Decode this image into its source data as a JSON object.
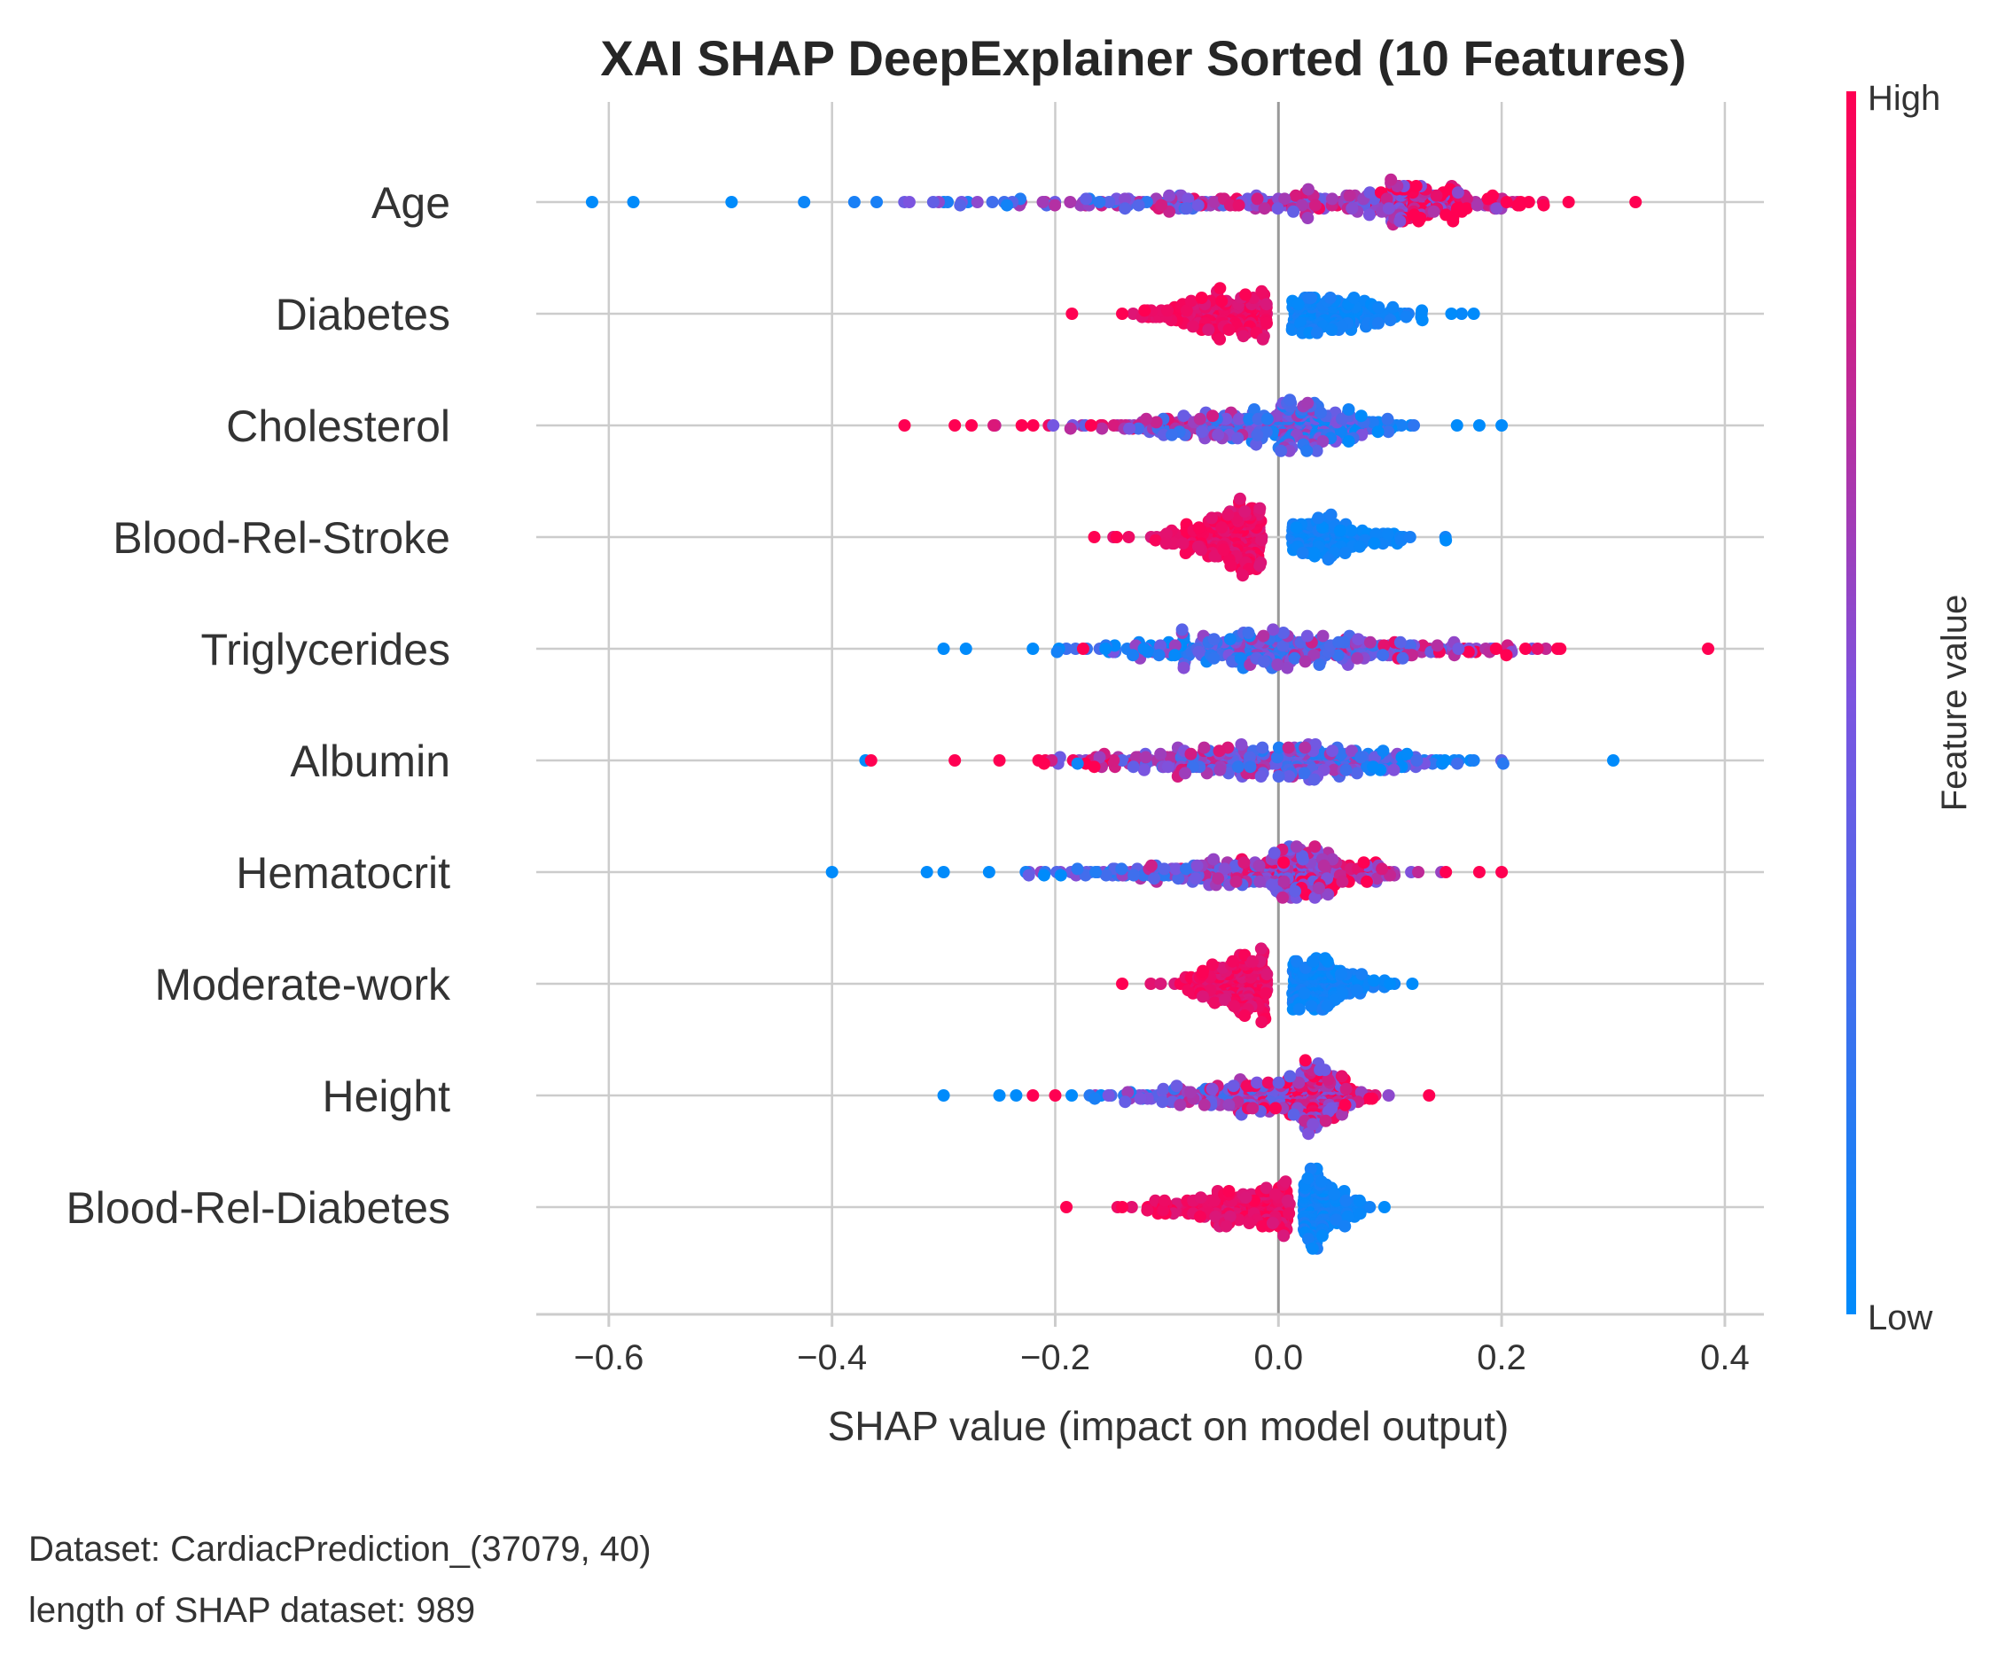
{
  "colors": {
    "low": "#008bfb",
    "high": "#ff0052",
    "grid": "#cccccc",
    "zero_line": "#999999",
    "axis": "#cccccc"
  },
  "footer": {
    "line1": "Dataset:  CardiacPrediction_(37079, 40)",
    "line2": "length of SHAP dataset: 989"
  },
  "chart_data": {
    "type": "scatter",
    "subtype": "beeswarm",
    "title": "XAI SHAP DeepExplainer Sorted  (10 Features)",
    "xlabel": "SHAP value (impact on model output)",
    "xlim": [
      -0.665,
      0.435
    ],
    "xticks": [
      -0.6,
      -0.4,
      -0.2,
      0.0,
      0.2,
      0.4
    ],
    "xtick_labels": [
      "−0.6",
      "−0.4",
      "−0.2",
      "0.0",
      "0.2",
      "0.4"
    ],
    "grid": true,
    "colorbar": {
      "label": "Feature value",
      "high_label": "High",
      "low_label": "Low"
    },
    "sample_count": 989,
    "features": [
      {
        "name": "Age",
        "shape": "mixed",
        "center": 0.1,
        "min": -0.615,
        "max": 0.32,
        "outliers": [
          [
            -0.615,
            0.0
          ],
          [
            -0.578,
            0.0
          ],
          [
            -0.49,
            0.0
          ],
          [
            -0.425,
            0.05
          ],
          [
            -0.38,
            0.1
          ],
          [
            -0.36,
            0.1
          ],
          [
            0.26,
            1.0
          ],
          [
            0.32,
            1.0
          ]
        ]
      },
      {
        "name": "Diabetes",
        "shape": "split_high_left",
        "center": -0.01,
        "min": -0.185,
        "max": 0.175,
        "outliers": [
          [
            -0.185,
            1.0
          ],
          [
            -0.14,
            1.0
          ],
          [
            -0.12,
            1.0
          ],
          [
            0.155,
            0.0
          ],
          [
            0.175,
            0.0
          ]
        ]
      },
      {
        "name": "Cholesterol",
        "shape": "mixed_inverse",
        "center": 0.0,
        "min": -0.335,
        "max": 0.2,
        "outliers": [
          [
            -0.335,
            1.0
          ],
          [
            -0.29,
            1.0
          ],
          [
            -0.275,
            1.0
          ],
          [
            -0.23,
            1.0
          ],
          [
            0.16,
            0.0
          ],
          [
            0.18,
            0.0
          ],
          [
            0.2,
            0.0
          ]
        ]
      },
      {
        "name": "Blood-Rel-Stroke",
        "shape": "split_high_left",
        "center": -0.015,
        "min": -0.165,
        "max": 0.15,
        "outliers": [
          [
            -0.165,
            1.0
          ],
          [
            -0.145,
            1.0
          ],
          [
            0.15,
            0.0
          ]
        ]
      },
      {
        "name": "Triglycerides",
        "shape": "mixed",
        "center": 0.0,
        "min": -0.3,
        "max": 0.385,
        "outliers": [
          [
            -0.3,
            0.0
          ],
          [
            -0.28,
            0.0
          ],
          [
            -0.22,
            0.0
          ],
          [
            -0.175,
            1.0
          ],
          [
            -0.155,
            0.0
          ],
          [
            0.195,
            1.0
          ],
          [
            0.25,
            1.0
          ],
          [
            0.385,
            1.0
          ]
        ]
      },
      {
        "name": "Albumin",
        "shape": "mixed_inverse",
        "center": 0.0,
        "min": -0.37,
        "max": 0.3,
        "outliers": [
          [
            -0.37,
            0.0
          ],
          [
            -0.365,
            1.0
          ],
          [
            -0.29,
            1.0
          ],
          [
            -0.215,
            1.0
          ],
          [
            -0.21,
            1.0
          ],
          [
            -0.18,
            0.05
          ],
          [
            -0.165,
            1.0
          ],
          [
            0.175,
            0.1
          ],
          [
            0.3,
            0.0
          ]
        ]
      },
      {
        "name": "Hematocrit",
        "shape": "mixed",
        "center": 0.0,
        "min": -0.4,
        "max": 0.2,
        "outliers": [
          [
            -0.4,
            0.0
          ],
          [
            -0.315,
            0.0
          ],
          [
            -0.3,
            0.0
          ],
          [
            -0.21,
            0.0
          ],
          [
            -0.195,
            0.0
          ],
          [
            0.15,
            1.0
          ],
          [
            0.18,
            1.0
          ],
          [
            0.2,
            1.0
          ]
        ]
      },
      {
        "name": "Moderate-work",
        "shape": "split_high_left",
        "center": -0.01,
        "min": -0.14,
        "max": 0.12,
        "outliers": [
          [
            -0.14,
            1.0
          ],
          [
            0.1,
            0.0
          ],
          [
            0.12,
            0.0
          ]
        ]
      },
      {
        "name": "Height",
        "shape": "mixed",
        "center": 0.01,
        "min": -0.3,
        "max": 0.135,
        "outliers": [
          [
            -0.3,
            0.0
          ],
          [
            -0.25,
            0.0
          ],
          [
            -0.235,
            0.0
          ],
          [
            -0.22,
            1.0
          ],
          [
            -0.2,
            1.0
          ],
          [
            0.135,
            1.0
          ]
        ]
      },
      {
        "name": "Blood-Rel-Diabetes",
        "shape": "split_high_left",
        "center": 0.01,
        "min": -0.19,
        "max": 0.095,
        "outliers": [
          [
            -0.19,
            1.0
          ],
          [
            -0.14,
            1.0
          ],
          [
            0.095,
            0.0
          ]
        ]
      }
    ]
  }
}
